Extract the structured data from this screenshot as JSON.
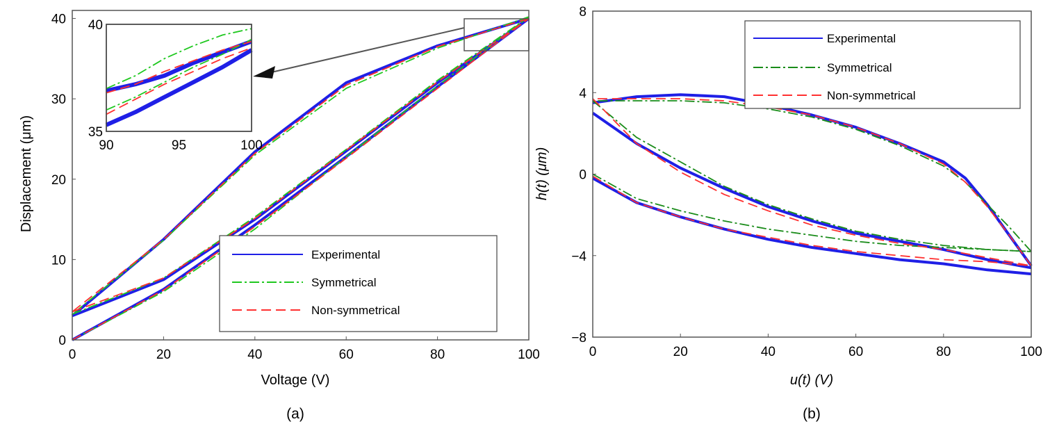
{
  "chart_data": [
    {
      "type": "line",
      "panel_label": "(a)",
      "xlabel": "Voltage (V)",
      "ylabel": "Displacement (μm)",
      "xlim": [
        0,
        100
      ],
      "ylim": [
        0,
        41
      ],
      "xticks": [
        0,
        20,
        40,
        60,
        80,
        100
      ],
      "yticks": [
        0,
        10,
        20,
        30,
        40
      ],
      "grid": false,
      "legend_position": "bottom-right",
      "colors": {
        "Experimental": "#1f1fe6",
        "Symmetrical": "#1fc81f",
        "Non-symmetrical": "#ff3030"
      },
      "series": [
        {
          "name": "Experimental",
          "style": "solid",
          "segments": [
            {
              "x": [
                0,
                20,
                40,
                60,
                80,
                100
              ],
              "y": [
                0,
                6.3,
                14.3,
                22.8,
                31.5,
                40
              ]
            },
            {
              "x": [
                100,
                80,
                60,
                40,
                20,
                0
              ],
              "y": [
                40,
                36.6,
                32.0,
                23.4,
                12.5,
                3
              ]
            },
            {
              "x": [
                0,
                20,
                40,
                60,
                80,
                100
              ],
              "y": [
                3,
                7.5,
                15.0,
                23.5,
                32.0,
                40
              ]
            }
          ]
        },
        {
          "name": "Symmetrical",
          "style": "dash-dot",
          "segments": [
            {
              "x": [
                0,
                20,
                40,
                60,
                80,
                100
              ],
              "y": [
                0,
                6.0,
                13.8,
                22.8,
                31.6,
                40.2
              ]
            },
            {
              "x": [
                100,
                80,
                60,
                40,
                20,
                0
              ],
              "y": [
                40.2,
                36.3,
                31.3,
                23.0,
                12.4,
                3.2
              ]
            },
            {
              "x": [
                0,
                20,
                40,
                60,
                80,
                100
              ],
              "y": [
                3.2,
                7.7,
                15.3,
                23.7,
                32.3,
                40.2
              ]
            }
          ]
        },
        {
          "name": "Non-symmetrical",
          "style": "dashed",
          "segments": [
            {
              "x": [
                0,
                20,
                40,
                60,
                80,
                100
              ],
              "y": [
                0,
                6.2,
                14.1,
                22.6,
                31.3,
                40
              ]
            },
            {
              "x": [
                100,
                80,
                60,
                40,
                20,
                0
              ],
              "y": [
                40,
                36.5,
                31.7,
                23.2,
                12.5,
                3.5
              ]
            },
            {
              "x": [
                0,
                20,
                40,
                60,
                80,
                100
              ],
              "y": [
                3.5,
                7.7,
                15.1,
                23.6,
                32.1,
                40
              ]
            }
          ]
        }
      ],
      "inset": {
        "xlim": [
          90,
          100
        ],
        "ylim": [
          35,
          40
        ],
        "xticks": [
          90,
          95,
          100
        ],
        "yticks": [
          35,
          40
        ],
        "series": [
          {
            "name": "Experimental",
            "segments": [
              {
                "x": [
                  90,
                  92,
                  94,
                  96,
                  98,
                  100
                ],
                "y": [
                  36.9,
                  37.2,
                  37.6,
                  38.2,
                  38.7,
                  39.2
                ]
              },
              {
                "x": [
                  90,
                  92,
                  94,
                  96,
                  98,
                  100
                ],
                "y": [
                  35.3,
                  35.9,
                  36.6,
                  37.3,
                  38.0,
                  38.8
                ]
              }
            ]
          },
          {
            "name": "Symmetrical",
            "segments": [
              {
                "x": [
                  90,
                  92,
                  94,
                  96,
                  98,
                  100
                ],
                "y": [
                  37.0,
                  37.6,
                  38.4,
                  39.0,
                  39.5,
                  39.8
                ]
              },
              {
                "x": [
                  90,
                  92,
                  94,
                  96,
                  98,
                  100
                ],
                "y": [
                  36.0,
                  36.6,
                  37.3,
                  38.0,
                  38.6,
                  39.3
                ]
              }
            ]
          },
          {
            "name": "Non-symmetrical",
            "segments": [
              {
                "x": [
                  90,
                  92,
                  94,
                  96,
                  98,
                  100
                ],
                "y": [
                  36.8,
                  37.2,
                  37.8,
                  38.3,
                  38.8,
                  39.2
                ]
              },
              {
                "x": [
                  90,
                  92,
                  94,
                  96,
                  98,
                  100
                ],
                "y": [
                  35.8,
                  36.5,
                  37.2,
                  37.8,
                  38.4,
                  38.9
                ]
              }
            ]
          }
        ]
      }
    },
    {
      "type": "line",
      "panel_label": "(b)",
      "xlabel": "u(t) (V)",
      "ylabel": "h(t) (μm)",
      "xlim": [
        0,
        100
      ],
      "ylim": [
        -8,
        8
      ],
      "xticks": [
        0,
        20,
        40,
        60,
        80,
        100
      ],
      "yticks": [
        -8,
        -4,
        0,
        4,
        8
      ],
      "ytick_labels": [
        "−8",
        "−4",
        "0",
        "4",
        "8"
      ],
      "grid": false,
      "legend_position": "top-right",
      "colors": {
        "Experimental": "#1f1fe6",
        "Symmetrical": "#1a8c1a",
        "Non-symmetrical": "#ff3030"
      },
      "series": [
        {
          "name": "Experimental",
          "style": "solid",
          "segments": [
            {
              "x": [
                0,
                10,
                20,
                30,
                40,
                50,
                60,
                70,
                80,
                90,
                100
              ],
              "y": [
                -0.2,
                -1.4,
                -2.1,
                -2.7,
                -3.2,
                -3.6,
                -3.9,
                -4.2,
                -4.4,
                -4.7,
                -4.9
              ]
            },
            {
              "x": [
                100,
                95,
                90,
                85,
                80,
                70,
                60,
                50,
                40,
                30,
                20,
                10,
                0
              ],
              "y": [
                -4.5,
                -3.0,
                -1.5,
                -0.2,
                0.6,
                1.5,
                2.3,
                2.9,
                3.4,
                3.8,
                3.9,
                3.8,
                3.5
              ]
            },
            {
              "x": [
                0,
                10,
                20,
                30,
                40,
                50,
                60,
                70,
                80,
                90,
                100
              ],
              "y": [
                3.0,
                1.5,
                0.3,
                -0.7,
                -1.6,
                -2.3,
                -2.9,
                -3.3,
                -3.7,
                -4.2,
                -4.6
              ]
            }
          ]
        },
        {
          "name": "Symmetrical",
          "style": "dash-dot",
          "segments": [
            {
              "x": [
                0,
                10,
                20,
                30,
                40,
                50,
                60,
                70,
                80,
                90,
                100
              ],
              "y": [
                0,
                -1.2,
                -1.8,
                -2.3,
                -2.7,
                -3.0,
                -3.3,
                -3.5,
                -3.6,
                -3.7,
                -3.8
              ]
            },
            {
              "x": [
                100,
                95,
                90,
                85,
                80,
                70,
                60,
                50,
                40,
                30,
                20,
                10,
                0
              ],
              "y": [
                -3.8,
                -2.6,
                -1.5,
                -0.4,
                0.4,
                1.4,
                2.2,
                2.8,
                3.2,
                3.5,
                3.6,
                3.6,
                3.6
              ]
            },
            {
              "x": [
                0,
                10,
                20,
                30,
                40,
                50,
                60,
                70,
                80,
                90,
                100
              ],
              "y": [
                3.6,
                1.8,
                0.6,
                -0.6,
                -1.5,
                -2.2,
                -2.8,
                -3.2,
                -3.5,
                -3.7,
                -3.8
              ]
            }
          ]
        },
        {
          "name": "Non-symmetrical",
          "style": "dashed",
          "segments": [
            {
              "x": [
                0,
                10,
                20,
                30,
                40,
                50,
                60,
                70,
                80,
                90,
                100
              ],
              "y": [
                -0.1,
                -1.4,
                -2.1,
                -2.7,
                -3.1,
                -3.5,
                -3.8,
                -4.0,
                -4.2,
                -4.3,
                -4.5
              ]
            },
            {
              "x": [
                100,
                95,
                90,
                85,
                80,
                70,
                60,
                50,
                40,
                30,
                20,
                10,
                0
              ],
              "y": [
                -4.5,
                -3.0,
                -1.6,
                -0.4,
                0.5,
                1.5,
                2.3,
                2.9,
                3.3,
                3.6,
                3.7,
                3.7,
                3.7
              ]
            },
            {
              "x": [
                0,
                10,
                20,
                30,
                40,
                50,
                60,
                70,
                80,
                90,
                100
              ],
              "y": [
                3.7,
                1.5,
                0.1,
                -1.0,
                -1.8,
                -2.5,
                -3.0,
                -3.4,
                -3.7,
                -4.1,
                -4.5
              ]
            }
          ]
        }
      ]
    }
  ]
}
